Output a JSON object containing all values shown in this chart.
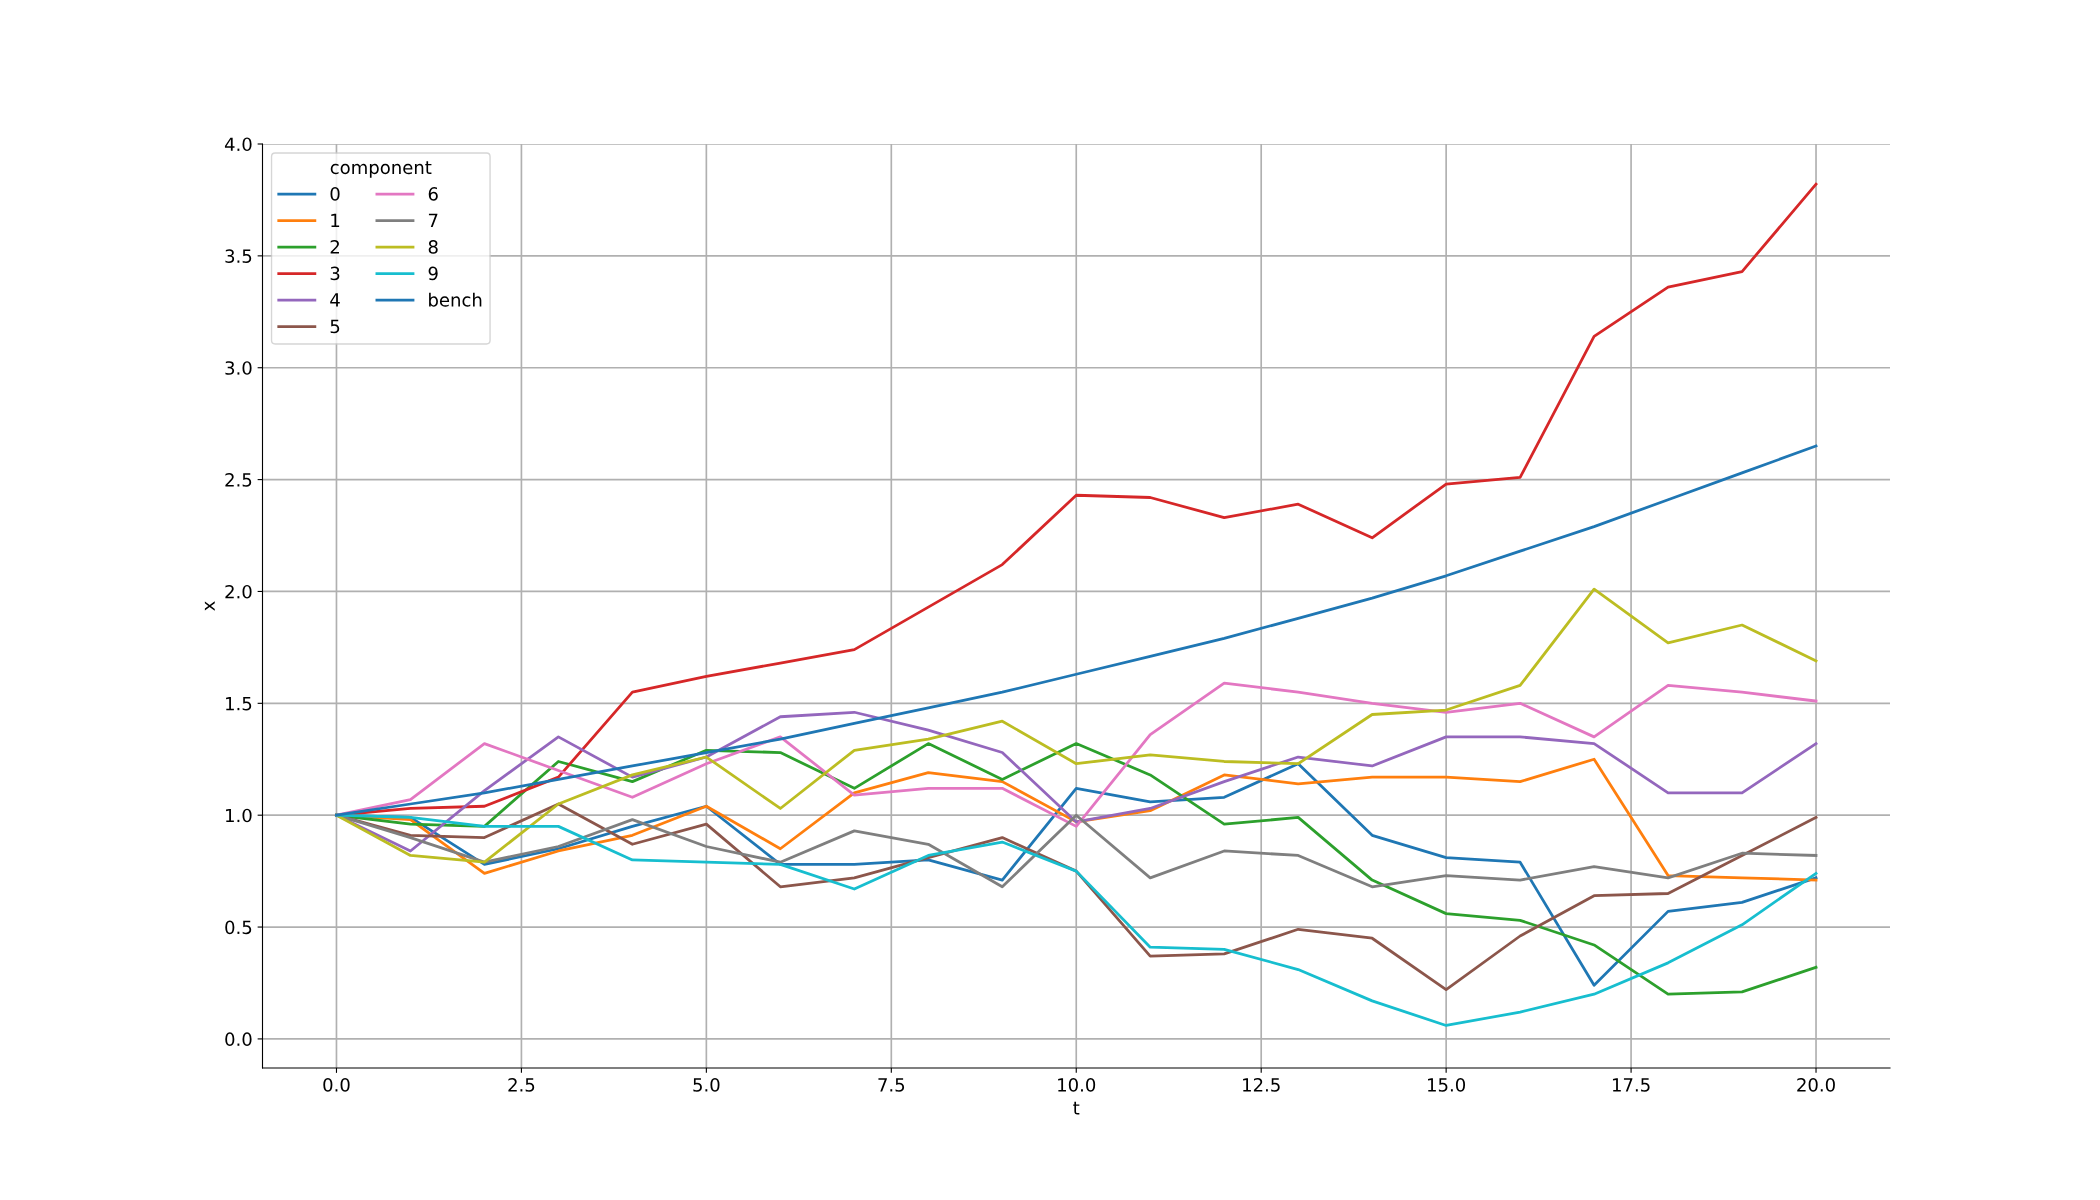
{
  "chart_data": {
    "type": "line",
    "xlabel": "t",
    "ylabel": "x",
    "legend_title": "component",
    "legend": "top left",
    "grid": true,
    "x": [
      0,
      1,
      2,
      3,
      4,
      5,
      6,
      7,
      8,
      9,
      10,
      11,
      12,
      13,
      14,
      15,
      16,
      17,
      18,
      19,
      20
    ],
    "xlim": [
      -1.0,
      21.0
    ],
    "xticks": [
      {
        "value": 0,
        "label": "0.0"
      },
      {
        "value": 2.5,
        "label": "2.5"
      },
      {
        "value": 5,
        "label": "5.0"
      },
      {
        "value": 7.5,
        "label": "7.5"
      },
      {
        "value": 10,
        "label": "10.0"
      },
      {
        "value": 12.5,
        "label": "12.5"
      },
      {
        "value": 15,
        "label": "15.0"
      },
      {
        "value": 17.5,
        "label": "17.5"
      },
      {
        "value": 20,
        "label": "20.0"
      }
    ],
    "ylim": [
      -0.13,
      4.0
    ],
    "yticks": [
      {
        "value": 0,
        "label": "0.0"
      },
      {
        "value": 0.5,
        "label": "0.5"
      },
      {
        "value": 1,
        "label": "1.0"
      },
      {
        "value": 1.5,
        "label": "1.5"
      },
      {
        "value": 2,
        "label": "2.0"
      },
      {
        "value": 2.5,
        "label": "2.5"
      },
      {
        "value": 3,
        "label": "3.0"
      },
      {
        "value": 3.5,
        "label": "3.5"
      },
      {
        "value": 4,
        "label": "4.0"
      }
    ],
    "series": [
      {
        "name": "0",
        "color": "#1f77b4",
        "values": [
          1.0,
          0.99,
          0.78,
          0.85,
          0.95,
          1.04,
          0.78,
          0.78,
          0.8,
          0.71,
          1.12,
          1.06,
          1.08,
          1.23,
          0.91,
          0.81,
          0.79,
          0.24,
          0.57,
          0.61,
          0.72
        ]
      },
      {
        "name": "1",
        "color": "#ff7f0e",
        "values": [
          1.0,
          0.98,
          0.74,
          0.84,
          0.91,
          1.04,
          0.85,
          1.1,
          1.19,
          1.15,
          0.97,
          1.02,
          1.18,
          1.14,
          1.17,
          1.17,
          1.15,
          1.25,
          0.73,
          0.72,
          0.71
        ]
      },
      {
        "name": "2",
        "color": "#2ca02c",
        "values": [
          1.0,
          0.96,
          0.95,
          1.24,
          1.15,
          1.29,
          1.28,
          1.12,
          1.32,
          1.16,
          1.32,
          1.18,
          0.96,
          0.99,
          0.71,
          0.56,
          0.53,
          0.42,
          0.2,
          0.21,
          0.32
        ]
      },
      {
        "name": "3",
        "color": "#d62728",
        "values": [
          1.0,
          1.03,
          1.04,
          1.17,
          1.55,
          1.62,
          1.68,
          1.74,
          1.93,
          2.12,
          2.43,
          2.42,
          2.33,
          2.39,
          2.24,
          2.48,
          2.51,
          3.14,
          3.36,
          3.43,
          3.82
        ]
      },
      {
        "name": "4",
        "color": "#9467bd",
        "values": [
          1.0,
          0.84,
          1.11,
          1.35,
          1.17,
          1.26,
          1.44,
          1.46,
          1.38,
          1.28,
          0.97,
          1.03,
          1.15,
          1.26,
          1.22,
          1.35,
          1.35,
          1.32,
          1.1,
          1.1,
          1.32
        ]
      },
      {
        "name": "5",
        "color": "#8c564b",
        "values": [
          1.0,
          0.91,
          0.9,
          1.05,
          0.87,
          0.96,
          0.68,
          0.72,
          0.81,
          0.9,
          0.75,
          0.37,
          0.38,
          0.49,
          0.45,
          0.22,
          0.46,
          0.64,
          0.65,
          0.82,
          0.99
        ]
      },
      {
        "name": "6",
        "color": "#e377c2",
        "values": [
          1.0,
          1.07,
          1.32,
          1.2,
          1.08,
          1.23,
          1.35,
          1.09,
          1.12,
          1.12,
          0.95,
          1.36,
          1.59,
          1.55,
          1.5,
          1.46,
          1.5,
          1.35,
          1.58,
          1.55,
          1.51
        ]
      },
      {
        "name": "7",
        "color": "#7f7f7f",
        "values": [
          1.0,
          0.9,
          0.79,
          0.86,
          0.98,
          0.86,
          0.79,
          0.93,
          0.87,
          0.68,
          1.0,
          0.72,
          0.84,
          0.82,
          0.68,
          0.73,
          0.71,
          0.77,
          0.72,
          0.83,
          0.82
        ]
      },
      {
        "name": "8",
        "color": "#bcbd22",
        "values": [
          1.0,
          0.82,
          0.79,
          1.05,
          1.18,
          1.26,
          1.03,
          1.29,
          1.34,
          1.42,
          1.23,
          1.27,
          1.24,
          1.23,
          1.45,
          1.47,
          1.58,
          2.01,
          1.77,
          1.85,
          1.69
        ]
      },
      {
        "name": "9",
        "color": "#17becf",
        "values": [
          1.0,
          0.99,
          0.95,
          0.95,
          0.8,
          0.79,
          0.78,
          0.67,
          0.82,
          0.88,
          0.75,
          0.41,
          0.4,
          0.31,
          0.17,
          0.06,
          0.12,
          0.2,
          0.34,
          0.51,
          0.74
        ]
      },
      {
        "name": "bench",
        "color": "#1f77b4",
        "values": [
          1.0,
          1.05,
          1.1,
          1.16,
          1.22,
          1.28,
          1.34,
          1.41,
          1.48,
          1.55,
          1.63,
          1.71,
          1.79,
          1.88,
          1.97,
          2.07,
          2.18,
          2.29,
          2.41,
          2.53,
          2.65
        ]
      }
    ]
  }
}
